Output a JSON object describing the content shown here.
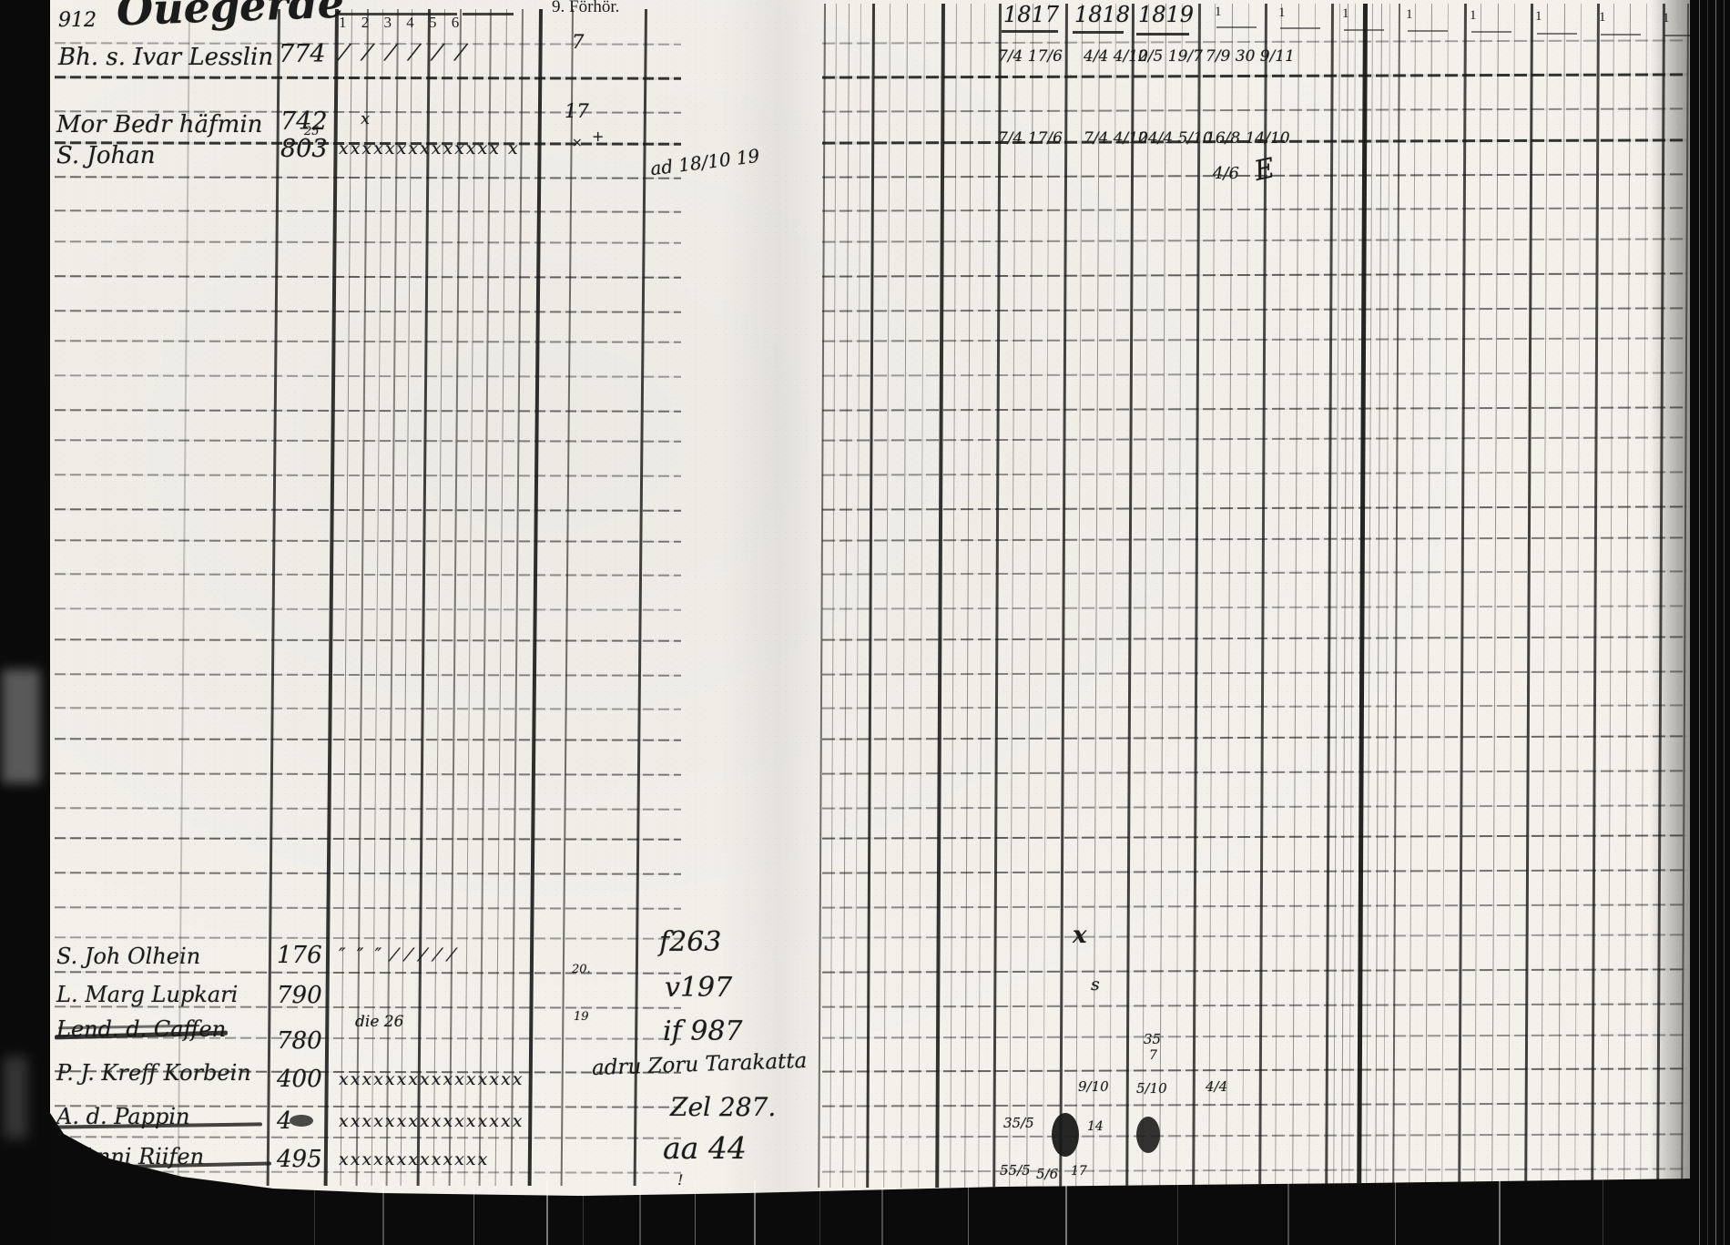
{
  "header": {
    "margin_number": "912",
    "heading_script": "Ouegerde",
    "forhor_label": "9. Förhör.",
    "tally_numbers": "1 2 3 4 5 6",
    "years": [
      "1817",
      "1818",
      "1819"
    ],
    "year_prefix": "1"
  },
  "entries_top": [
    {
      "name": "Bh. s. Ivar Lesslin",
      "number": "774",
      "tally": "⁄ ⁄ ⁄ ⁄ ⁄ ⁄",
      "forhor_mark": "7",
      "dates": [
        "7/4 17/6",
        "4/4 4/10",
        "2/5 19/7",
        "7/9 30 9/11"
      ]
    },
    {
      "name": "Mor Bedr häfmin",
      "number": "742",
      "tally": "x",
      "forhor_mark": "17",
      "plus_mark": "+",
      "x_mark": "×",
      "dates": [
        "7/4 17/6",
        "7/4 4/10",
        "24/4 5/10",
        "16/8 14/10"
      ],
      "extra_date": "4/6",
      "flourish": "E"
    },
    {
      "name": "S. Johan",
      "number": "803",
      "number_sup": "25",
      "tally": "xxxxxxxxxxxxxx x",
      "note": "ad 18/10 19"
    }
  ],
  "entries_bottom": [
    {
      "name": "S. Joh Olhein",
      "number": "176",
      "tally": "″ ″ ″ ⁄ ⁄ ⁄ ⁄ ⁄",
      "cell_mark": "20.",
      "note": "f263"
    },
    {
      "name": "L. Marg Lupkari",
      "number": "790",
      "note": "v197"
    },
    {
      "name": "Lend. d. Caffen",
      "number": "780",
      "above_note": "die 26",
      "cell_mark": "19",
      "note": "if 987"
    },
    {
      "name": "P. J. Kreff Korbein",
      "number": "400",
      "tally": "xxxxxxxxxxxxxxxx",
      "note": "adru Zoru Tarakatta"
    },
    {
      "name": "A. d. Pappin",
      "number": "4",
      "tally": "xxxxxxxxxxxxxxxx",
      "note": "Zel 287."
    },
    {
      "name": "P. Anni Riifen",
      "number": "495",
      "tally": "xxxxxxxxxxxxx",
      "note": "aa 44",
      "note_mark": "!"
    }
  ],
  "right_marks": [
    {
      "text": "x"
    },
    {
      "text": "s"
    },
    {
      "text": "35"
    },
    {
      "text": "7"
    },
    {
      "text": "9/10"
    },
    {
      "text": "5/10"
    },
    {
      "text": "4/4"
    },
    {
      "text": "35/5"
    },
    {
      "text": "14"
    },
    {
      "text": "55/5"
    },
    {
      "text": "5/6"
    },
    {
      "text": "17"
    }
  ]
}
